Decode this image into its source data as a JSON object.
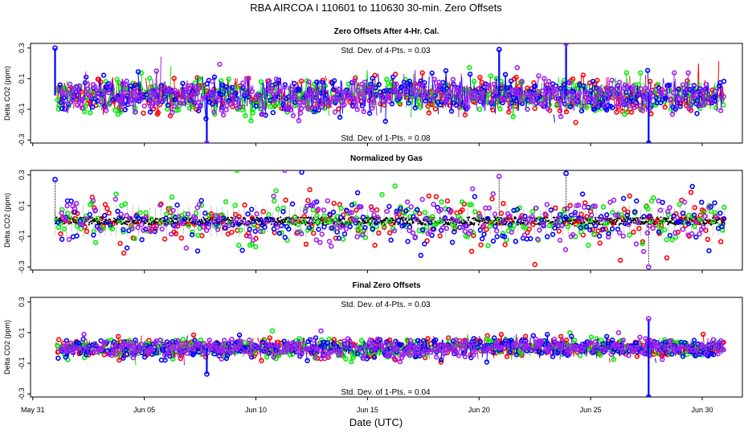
{
  "chart_data": {
    "type": "scatter",
    "title": "RBA   AIRCOA I   110601 to 110630   30-min. Zero Offsets",
    "xlabel": "Date (UTC)",
    "ylabel": "Delta CO2 (ppm)",
    "x_unit": "days since May 31 00:00 UTC",
    "xlim": [
      -0.1,
      31.8
    ],
    "x_ticks": [
      {
        "label": "May 31",
        "value": 0
      },
      {
        "label": "Jun 05",
        "value": 5
      },
      {
        "label": "Jun 10",
        "value": 10
      },
      {
        "label": "Jun 15",
        "value": 15
      },
      {
        "label": "Jun 20",
        "value": 20
      },
      {
        "label": "Jun 25",
        "value": 25
      },
      {
        "label": "Jun 30",
        "value": 30
      }
    ],
    "data_range_days": [
      1.0,
      31.0
    ],
    "series_colors": {
      "gas1": "#ff0000",
      "gas2": "#00ee00",
      "gas3": "#0000ff",
      "gas4": "#a020f0",
      "normalized": "#000000"
    },
    "panels": [
      {
        "title": "Zero Offsets After 4-Hr. Cal.",
        "ylim": [
          -0.32,
          0.33
        ],
        "y_ticks": [
          "0.3",
          "0.1",
          "-0.1",
          "-0.3"
        ],
        "y_tick_values": [
          0.3,
          0.1,
          -0.1,
          -0.3
        ],
        "stat_top": "Std. Dev. of 4-Pts. = 0.03",
        "stat_bottom": "Std. Dev. of 1-Pts. = 0.08",
        "base": -0.01,
        "spread": 0.055,
        "spikes": [
          {
            "day": 1.0,
            "value": 0.3
          },
          {
            "day": 7.8,
            "value": -0.32
          },
          {
            "day": 20.9,
            "value": 0.29
          },
          {
            "day": 23.9,
            "value": 0.33
          },
          {
            "day": 27.6,
            "value": -0.32
          }
        ]
      },
      {
        "title": "Normalized by Gas",
        "ylim": [
          -0.32,
          0.33
        ],
        "y_ticks": [
          "0.3",
          "0.1",
          "-0.1",
          "-0.3"
        ],
        "y_tick_values": [
          0.3,
          0.1,
          -0.1,
          -0.3
        ],
        "stat_top": "",
        "stat_bottom": "",
        "base": 0.0,
        "spread": 0.075,
        "spikes": [
          {
            "day": 1.0,
            "value": 0.27
          },
          {
            "day": 20.9,
            "value": 0.29
          },
          {
            "day": 23.9,
            "value": 0.31
          },
          {
            "day": 27.6,
            "value": -0.3
          }
        ]
      },
      {
        "title": "Final Zero Offsets",
        "ylim": [
          -0.32,
          0.33
        ],
        "y_ticks": [
          "0.3",
          "0.1",
          "-0.1",
          "-0.3"
        ],
        "y_tick_values": [
          0.3,
          0.1,
          -0.1,
          -0.3
        ],
        "stat_top": "Std. Dev. of 4-Pts. = 0.03",
        "stat_bottom": "Std. Dev. of 1-Pts. = 0.04",
        "base": 0.0,
        "spread": 0.03,
        "spikes": [
          {
            "day": 7.8,
            "value": -0.17
          },
          {
            "day": 27.6,
            "value": 0.19
          },
          {
            "day": 27.6,
            "value": -0.32
          }
        ]
      }
    ]
  }
}
